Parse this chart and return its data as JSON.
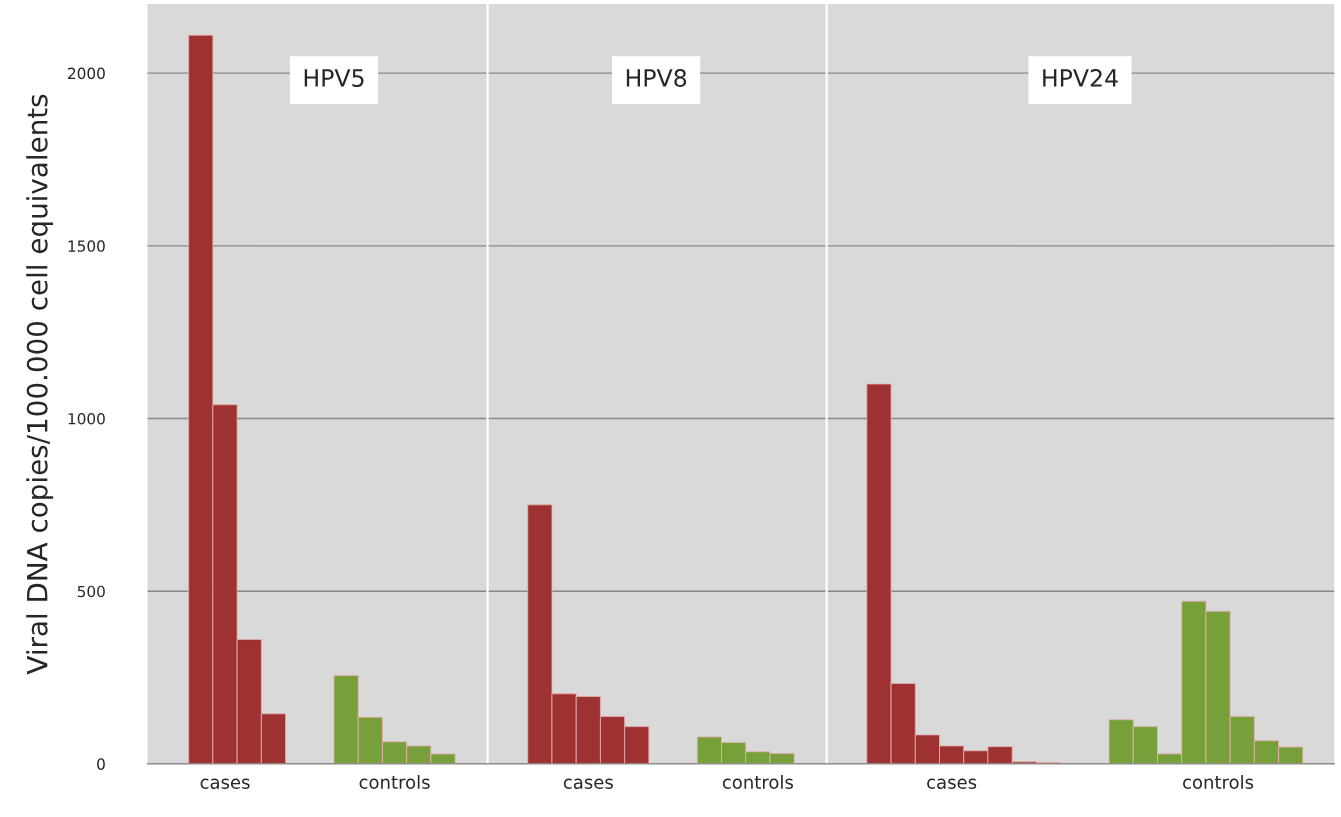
{
  "chart_data": [
    {
      "type": "bar",
      "title": "HPV5",
      "ylabel": "Viral DNA copies/100.000 cell equivalents",
      "categories": [
        null,
        "cases",
        null,
        null,
        null,
        null,
        null,
        null,
        "controls",
        null,
        null
      ],
      "series": [
        {
          "color": "#9e3232",
          "values": [
            2110,
            1040,
            360,
            145,
            null,
            null,
            null,
            null,
            null,
            null,
            null
          ]
        },
        {
          "color": "#77a03a",
          "values": [
            null,
            null,
            null,
            null,
            null,
            null,
            256,
            135,
            64,
            52,
            29
          ]
        }
      ],
      "ylim": [
        0,
        2200
      ],
      "yticks": [
        0,
        500,
        1000,
        1500,
        2000
      ],
      "grid": "y"
    },
    {
      "type": "bar",
      "title": "HPV8",
      "categories": [
        null,
        null,
        "cases",
        null,
        null,
        null,
        null,
        null,
        null,
        "controls",
        null
      ],
      "series": [
        {
          "color": "#9e3232",
          "values": [
            750,
            203,
            195,
            137,
            108,
            null,
            null,
            null,
            null,
            null,
            null
          ]
        },
        {
          "color": "#77a03a",
          "values": [
            null,
            null,
            null,
            null,
            null,
            null,
            null,
            78,
            62,
            35,
            30
          ]
        }
      ],
      "ylim": [
        0,
        2200
      ],
      "yticks": [
        0,
        500,
        1000,
        1500,
        2000
      ],
      "grid": "y",
      "tick_labels": "x"
    },
    {
      "type": "bar",
      "title": "HPV24",
      "categories": [
        null,
        null,
        null,
        "cases",
        null,
        null,
        null,
        null,
        null,
        null,
        null,
        null,
        null,
        null,
        "controls",
        null,
        null,
        null
      ],
      "series": [
        {
          "color": "#9e3232",
          "values": [
            1100,
            233,
            84,
            52,
            38,
            50,
            6,
            4,
            null,
            null,
            null,
            null,
            null,
            null,
            null,
            null,
            null,
            null
          ]
        },
        {
          "color": "#77a03a",
          "values": [
            null,
            null,
            null,
            null,
            null,
            null,
            null,
            null,
            null,
            null,
            128,
            108,
            29,
            471,
            442,
            137,
            67,
            49
          ]
        }
      ],
      "ylim": [
        0,
        2200
      ],
      "yticks": [
        0,
        500,
        1000,
        1500,
        2000
      ],
      "grid": "y",
      "tick_labels": "x"
    }
  ]
}
